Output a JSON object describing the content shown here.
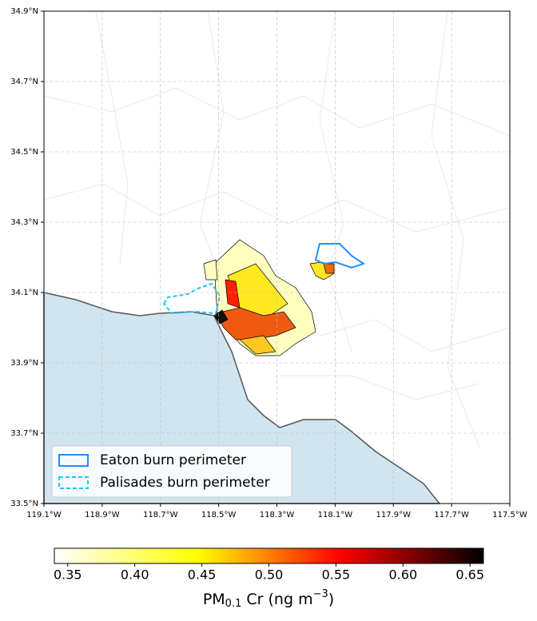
{
  "chart_data": {
    "type": "map",
    "xlim": [
      -119.1,
      -117.5
    ],
    "ylim": [
      33.5,
      34.9
    ],
    "xticks": [
      {
        "value": -119.1,
        "label": "119.1°W"
      },
      {
        "value": -118.9,
        "label": "118.9°W"
      },
      {
        "value": -118.7,
        "label": "118.7°W"
      },
      {
        "value": -118.5,
        "label": "118.5°W"
      },
      {
        "value": -118.3,
        "label": "118.3°W"
      },
      {
        "value": -118.1,
        "label": "118.1°W"
      },
      {
        "value": -117.9,
        "label": "117.9°W"
      },
      {
        "value": -117.7,
        "label": "117.7°W"
      },
      {
        "value": -117.5,
        "label": "117.5°W"
      }
    ],
    "yticks": [
      {
        "value": 33.5,
        "label": "33.5°N"
      },
      {
        "value": 33.7,
        "label": "33.7°N"
      },
      {
        "value": 33.9,
        "label": "33.9°N"
      },
      {
        "value": 34.1,
        "label": "34.1°N"
      },
      {
        "value": 34.3,
        "label": "34.3°N"
      },
      {
        "value": 34.5,
        "label": "34.5°N"
      },
      {
        "value": 34.7,
        "label": "34.7°N"
      },
      {
        "value": 34.9,
        "label": "34.9°N"
      }
    ],
    "grid": true,
    "legend": [
      {
        "name": "Eaton burn perimeter",
        "color": "#1e90ff",
        "style": "solid"
      },
      {
        "name": "Palisades burn perimeter",
        "color": "#1ec8f0",
        "style": "dashed"
      }
    ],
    "colorbar": {
      "clim": [
        0.34,
        0.66
      ],
      "colormap": [
        "#ffffff",
        "#ffff00",
        "#ff0000",
        "#000000"
      ],
      "ticks": [
        {
          "value": 0.35,
          "label": "0.35"
        },
        {
          "value": 0.4,
          "label": "0.40"
        },
        {
          "value": 0.45,
          "label": "0.45"
        },
        {
          "value": 0.5,
          "label": "0.50"
        },
        {
          "value": 0.55,
          "label": "0.55"
        },
        {
          "value": 0.6,
          "label": "0.60"
        },
        {
          "value": 0.65,
          "label": "0.65"
        }
      ],
      "label": {
        "base": "PM",
        "sub": "0.1",
        "mid": " Cr (ng m",
        "sup": "−3",
        "end": ")"
      }
    }
  }
}
